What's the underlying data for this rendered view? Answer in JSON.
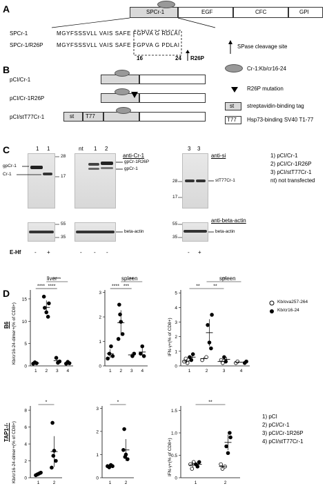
{
  "panelA": {
    "letter": "A",
    "domains": [
      "SPCr-1",
      "EGF",
      "CFC",
      "GPI"
    ],
    "seq1_label": "SPCr-1",
    "seq2_label": "SPCr-1/R26P",
    "seq1": "MGYFSSSVLL  VAIS SAFE FGPVA  G  RDLAI",
    "seq2": "MGYFSSSVLL  VAIS SAFE FGPVA  G  PDLAI",
    "pos16": "16",
    "pos24": "24",
    "r26p": "R26P",
    "legend_cleavage": "SPase cleavage site"
  },
  "panelB": {
    "letter": "B",
    "constructs": [
      "pCI/Cr-1",
      "pCI/Cr-1R26P",
      "pCI/stT77Cr-1"
    ],
    "legend": {
      "cr1": "Cr-1:Kb/cr16-24",
      "mut": "R26P mutation",
      "st_box": "st",
      "st": "streptavidin-binding tag",
      "t77_box": "T77",
      "t77": "Hsp73-binding SV40 T1-77"
    }
  },
  "panelC": {
    "letter": "C",
    "blot1_lanes": [
      "1",
      "1"
    ],
    "blot2_lanes": [
      "nt",
      "1",
      "2"
    ],
    "blot3_lanes": [
      "3",
      "3"
    ],
    "anti_cr1": "anti-Cr-1",
    "anti_si": "anti-si",
    "anti_actin": "anti-beta-actin",
    "mw_left": [
      "28",
      "17",
      "55",
      "35"
    ],
    "mw_right": [
      "28",
      "17",
      "55",
      "35"
    ],
    "band_labels": {
      "gpcr1": "gpCr-1",
      "cr1": "Cr-1",
      "gpcr1r26p": "gpCr-1R26P",
      "gpcr1b": "gpCr-1",
      "stt77": "stT77Cr-1",
      "actin1": "beta-actin",
      "actin2": "beta-actin"
    },
    "ehf": "E-Hf",
    "signs": [
      "-",
      "+",
      "-",
      "-",
      "-",
      "-",
      "+"
    ],
    "key": [
      "1) pCI/Cr-1",
      "2) pCI/Cr-1R26P",
      "3) pCI/stT77Cr-1",
      "nt) not transfected"
    ]
  },
  "panelD": {
    "letter": "D",
    "col_titles": [
      "liver",
      "spleen",
      "spleen"
    ],
    "row_labels": [
      "B6",
      "TAP1-/-"
    ],
    "ylabel_dimer": "Kb/cr16-24-dimer+(% of CD8+)",
    "ylabel_ifn": "IFN-γ+(% of CD8+)",
    "legend_open": "Kb/ova257-264",
    "legend_filled": "Kb/cr16-24",
    "key": [
      "1) pCI",
      "2) pCI/Cr-1",
      "3) pCI/Cr-1R26P",
      "4) pCI/stT77Cr-1"
    ],
    "sig": {
      "b6_liver": [
        "****",
        "****",
        "****"
      ],
      "b6_spleen": [
        "****",
        "***",
        "**"
      ],
      "b6_ifn": [
        "**",
        "**",
        "**"
      ],
      "tap_liver": [
        "*"
      ],
      "tap_spleen": [
        "*"
      ],
      "tap_ifn": [
        "**"
      ]
    }
  },
  "chart_data": [
    {
      "type": "scatter",
      "panel": "D B6 liver",
      "x_ticks": [
        "1",
        "2",
        "3",
        "4"
      ],
      "y_ticks": [
        "0",
        "5",
        "10",
        "15"
      ],
      "ylim": [
        0,
        17
      ],
      "series": [
        {
          "values": [
            [
              1,
              0.5
            ],
            [
              1,
              0.8
            ],
            [
              1,
              0.6
            ],
            [
              2,
              14
            ],
            [
              2,
              13
            ],
            [
              2,
              12
            ],
            [
              2,
              11
            ],
            [
              2,
              15.5
            ],
            [
              3,
              1.8
            ],
            [
              3,
              0.7
            ],
            [
              3,
              1.0
            ],
            [
              4,
              0.5
            ],
            [
              4,
              0.9
            ],
            [
              4,
              0.6
            ]
          ]
        }
      ]
    },
    {
      "type": "scatter",
      "panel": "D B6 spleen",
      "x_ticks": [
        "1",
        "2",
        "3",
        "4"
      ],
      "y_ticks": [
        "0",
        "1",
        "2",
        "3"
      ],
      "ylim": [
        0,
        3.1
      ],
      "series": [
        {
          "values": [
            [
              1,
              0.3
            ],
            [
              1,
              0.5
            ],
            [
              1,
              0.8
            ],
            [
              1,
              0.4
            ],
            [
              2,
              2.5
            ],
            [
              2,
              1.8
            ],
            [
              2,
              1.3
            ],
            [
              2,
              1.1
            ],
            [
              2,
              2.1
            ],
            [
              3,
              0.4
            ],
            [
              3,
              0.5
            ],
            [
              4,
              0.5
            ],
            [
              4,
              0.8
            ],
            [
              4,
              0.4
            ]
          ]
        }
      ]
    },
    {
      "type": "scatter",
      "panel": "D B6 IFN",
      "x_ticks": [
        "1",
        "2",
        "3",
        "4"
      ],
      "y_ticks": [
        "0",
        "1",
        "2",
        "3",
        "4",
        "5"
      ],
      "ylim": [
        0,
        5.2
      ],
      "series": [
        {
          "name": "Kb/ova257-264",
          "values": [
            [
              1,
              0.3
            ],
            [
              1,
              0.5
            ],
            [
              1,
              0.2
            ],
            [
              2,
              0.6
            ],
            [
              2,
              0.4
            ],
            [
              3,
              0.4
            ],
            [
              3,
              0.2
            ],
            [
              4,
              0.2
            ],
            [
              4,
              0.3
            ]
          ]
        },
        {
          "name": "Kb/cr16-24",
          "values": [
            [
              1,
              0.6
            ],
            [
              1,
              0.4
            ],
            [
              1,
              0.8
            ],
            [
              2,
              3.5
            ],
            [
              2,
              2.8
            ],
            [
              2,
              1.6
            ],
            [
              2,
              1.2
            ],
            [
              3,
              0.6
            ],
            [
              3,
              0.3
            ],
            [
              4,
              0.2
            ],
            [
              4,
              0.3
            ]
          ]
        }
      ]
    },
    {
      "type": "scatter",
      "panel": "D TAP1 liver",
      "x_ticks": [
        "1",
        "2"
      ],
      "y_ticks": [
        "0",
        "2",
        "4",
        "6",
        "8"
      ],
      "ylim": [
        0,
        8.5
      ],
      "series": [
        {
          "values": [
            [
              1,
              0.3
            ],
            [
              1,
              0.4
            ],
            [
              1,
              0.5
            ],
            [
              1,
              0.6
            ],
            [
              2,
              6.5
            ],
            [
              2,
              3.2
            ],
            [
              2,
              2.0
            ],
            [
              2,
              1.2
            ],
            [
              2,
              2.6
            ]
          ]
        }
      ]
    },
    {
      "type": "scatter",
      "panel": "D TAP1 spleen",
      "x_ticks": [
        "1",
        "2"
      ],
      "y_ticks": [
        "0",
        "1",
        "2",
        "3"
      ],
      "ylim": [
        0,
        3.1
      ],
      "series": [
        {
          "values": [
            [
              1,
              0.5
            ],
            [
              1,
              0.45
            ],
            [
              1,
              0.55
            ],
            [
              1,
              0.5
            ],
            [
              2,
              2.1
            ],
            [
              2,
              1.0
            ],
            [
              2,
              0.8
            ],
            [
              2,
              1.2
            ],
            [
              2,
              0.9
            ]
          ]
        }
      ]
    },
    {
      "type": "scatter",
      "panel": "D TAP1 IFN",
      "x_ticks": [
        "1",
        "2"
      ],
      "y_ticks": [
        "0",
        "0.5",
        "1.0",
        "1.5"
      ],
      "ylim": [
        0,
        1.6
      ],
      "series": [
        {
          "name": "Kb/ova257-264",
          "values": [
            [
              1,
              0.3
            ],
            [
              1,
              0.2
            ],
            [
              1,
              0.35
            ],
            [
              2,
              0.25
            ],
            [
              2,
              0.3
            ],
            [
              2,
              0.2
            ]
          ]
        },
        {
          "name": "Kb/cr16-24",
          "values": [
            [
              1,
              0.3
            ],
            [
              1,
              0.25
            ],
            [
              1,
              0.35
            ],
            [
              2,
              0.9
            ],
            [
              2,
              0.7
            ],
            [
              2,
              0.55
            ],
            [
              2,
              1.0
            ]
          ]
        }
      ]
    }
  ]
}
